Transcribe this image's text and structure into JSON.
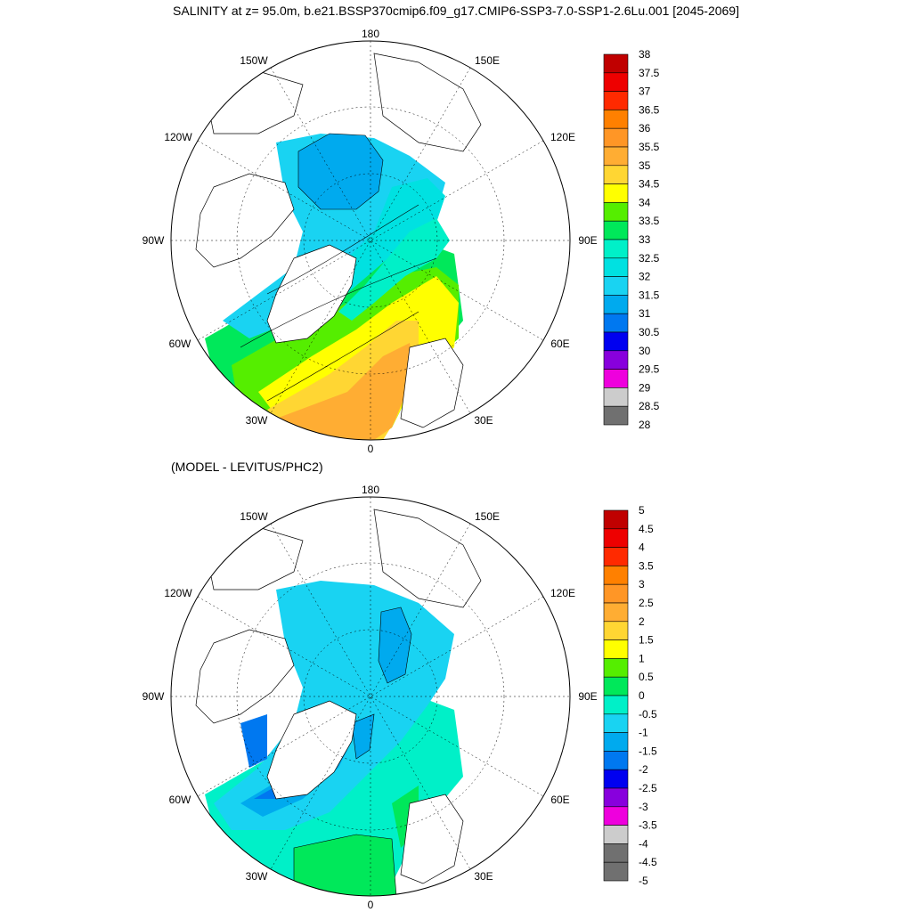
{
  "title": "SALINITY at z=  95.0m, b.e21.BSSP370cmip6.f09_g17.CMIP6-SSP3-7.0-SSP1-2.6Lu.001 [2045-2069]",
  "subtitle": "(MODEL - LEVITUS/PHC2)",
  "longitude_labels": {
    "top": "180",
    "bottom": "0",
    "w150": "150W",
    "e150": "150E",
    "w120": "120W",
    "e120": "120E",
    "w90": "90W",
    "e90": "90E",
    "w60": "60W",
    "e60": "60E",
    "w30": "30W",
    "e30": "30E"
  },
  "top_colorbar": {
    "labels": [
      "38",
      "37.5",
      "37",
      "36.5",
      "36",
      "35.5",
      "35",
      "34.5",
      "34",
      "33.5",
      "33",
      "32.5",
      "32",
      "31.5",
      "31",
      "30.5",
      "30",
      "29.5",
      "29",
      "28.5",
      "28"
    ],
    "colors": [
      "#c00000",
      "#ee0000",
      "#ff2a00",
      "#ff8000",
      "#ff9626",
      "#ffad33",
      "#ffd633",
      "#ffff00",
      "#55ee00",
      "#00e85a",
      "#00f0c8",
      "#00e1e1",
      "#19d3f2",
      "#00aaee",
      "#0078f0",
      "#0000f0",
      "#8800dd",
      "#ee00dd",
      "#cccccc",
      "#707070"
    ]
  },
  "bottom_colorbar": {
    "labels": [
      "5",
      "4.5",
      "4",
      "3.5",
      "3",
      "2.5",
      "2",
      "1.5",
      "1",
      "0.5",
      "0",
      "-0.5",
      "-1",
      "-1.5",
      "-2",
      "-2.5",
      "-3",
      "-3.5",
      "-4",
      "-4.5",
      "-5"
    ],
    "colors": [
      "#c00000",
      "#ee0000",
      "#ff2a00",
      "#ff8000",
      "#ff9626",
      "#ffad33",
      "#ffd633",
      "#ffff00",
      "#55ee00",
      "#00e85a",
      "#00f0c8",
      "#19d3f2",
      "#00aaee",
      "#0078f0",
      "#0000f0",
      "#8800dd",
      "#ee00dd",
      "#cccccc",
      "#707070",
      "#707070"
    ]
  },
  "colors": {
    "top_basin": "#19d3f2",
    "top_beaufort": "#00aaee",
    "top_gradient": [
      "#00e1e1",
      "#00f0c8",
      "#00e85a",
      "#55ee00",
      "#ffff00",
      "#ffd633",
      "#ffad33"
    ],
    "bottom_basin": "#19d3f2",
    "bottom_anomaly_low": "#00aaee",
    "bottom_anomaly_lower": "#0078f0",
    "bottom_teal": "#00f0c8",
    "bottom_green": "#00e85a"
  }
}
